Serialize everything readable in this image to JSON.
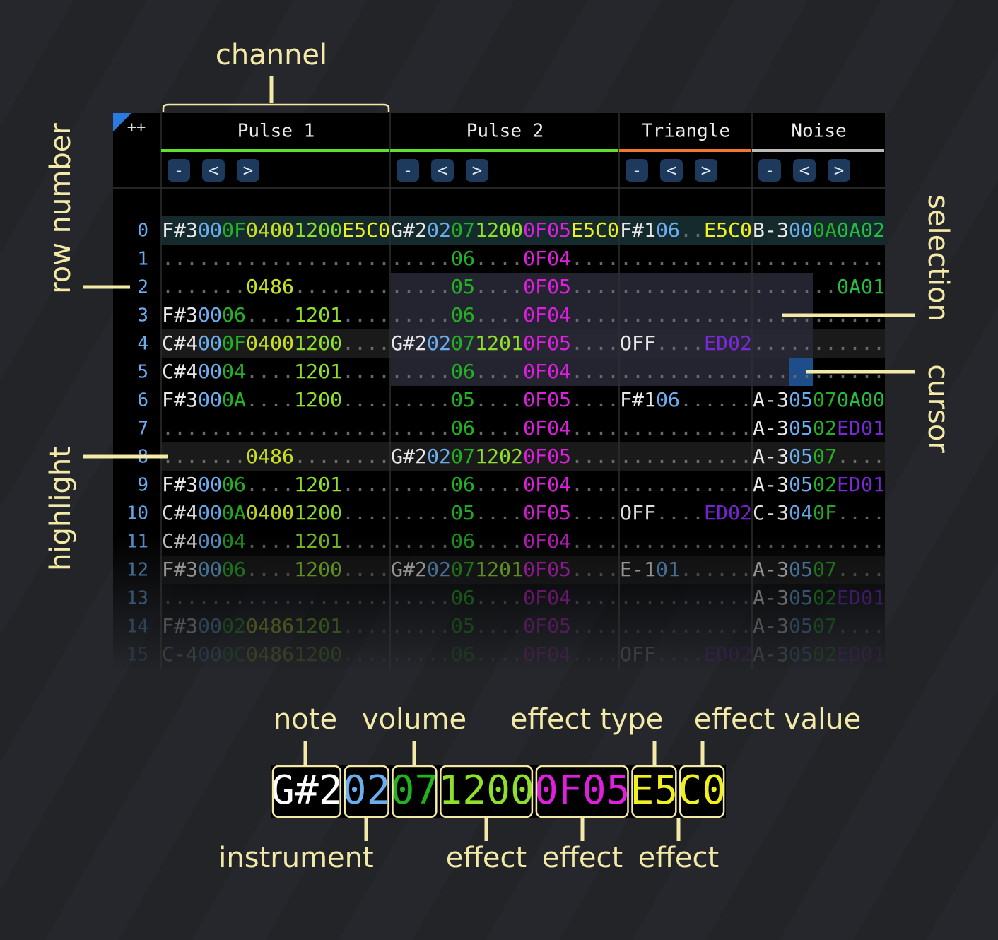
{
  "annotations": {
    "channel": "channel",
    "row_number": "row number",
    "highlight": "highlight",
    "selection": "selection",
    "cursor": "cursor"
  },
  "header": {
    "corner": "++",
    "channels": [
      {
        "name": "Pulse 1",
        "color": "#5fe030",
        "buttons": [
          "-",
          "<",
          ">"
        ]
      },
      {
        "name": "Pulse 2",
        "color": "#5fe030",
        "buttons": [
          "-",
          "<",
          ">"
        ]
      },
      {
        "name": "Triangle",
        "color": "#f07830",
        "buttons": [
          "-",
          "<",
          ">"
        ]
      },
      {
        "name": "Noise",
        "color": "#bbbbbb",
        "buttons": [
          "-",
          "<",
          ">"
        ]
      }
    ]
  },
  "pattern": {
    "colors": {
      "note": "#e8e8e8",
      "instrument": "#6aaef0",
      "volume": "#22b322",
      "dot": "#6a6a6a",
      "effects": {
        "04": "#c8e020",
        "12": "#8ee02a",
        "0F": "#e01ee0",
        "E5": "#f0f020",
        "ED": "#7a28d8",
        "0A": "#22c040"
      }
    },
    "rows": [
      {
        "number": 0,
        "cells": [
          [
            "F#3",
            "00",
            "0F",
            "0400",
            "1200",
            "E5C0"
          ],
          [
            "G#2",
            "02",
            "07",
            "1200",
            "0F05",
            "E5C0"
          ],
          [
            "F#1",
            "06",
            "..",
            "E5C0"
          ],
          [
            "B-3",
            "00",
            "0A",
            "0A02"
          ]
        ]
      },
      {
        "number": 1,
        "cells": [
          [
            "...",
            "..",
            "..",
            "....",
            "....",
            "...."
          ],
          [
            "...",
            "..",
            "06",
            "....",
            "0F04",
            "...."
          ],
          [
            "...",
            "..",
            "..",
            "...."
          ],
          [
            "...",
            "..",
            "..",
            "...."
          ]
        ]
      },
      {
        "number": 2,
        "cells": [
          [
            "...",
            "..",
            "..",
            "0486",
            "....",
            "...."
          ],
          [
            "...",
            "..",
            "05",
            "....",
            "0F05",
            "...."
          ],
          [
            "...",
            "..",
            "..",
            "...."
          ],
          [
            "...",
            "..",
            "..",
            "0A01"
          ]
        ]
      },
      {
        "number": 3,
        "cells": [
          [
            "F#3",
            "00",
            "06",
            "....",
            "1201",
            "...."
          ],
          [
            "...",
            "..",
            "06",
            "....",
            "0F04",
            "...."
          ],
          [
            "...",
            "..",
            "..",
            "...."
          ],
          [
            "...",
            "..",
            "..",
            "...."
          ]
        ]
      },
      {
        "number": 4,
        "cells": [
          [
            "C#4",
            "00",
            "0F",
            "0400",
            "1200",
            "...."
          ],
          [
            "G#2",
            "02",
            "07",
            "1201",
            "0F05",
            "...."
          ],
          [
            "OFF",
            "..",
            "..",
            "ED02"
          ],
          [
            "...",
            "..",
            "..",
            "...."
          ]
        ]
      },
      {
        "number": 5,
        "cells": [
          [
            "C#4",
            "00",
            "04",
            "....",
            "1201",
            "...."
          ],
          [
            "...",
            "..",
            "06",
            "....",
            "0F04",
            "...."
          ],
          [
            "...",
            "..",
            "..",
            "...."
          ],
          [
            "...",
            "..",
            "..",
            "...."
          ]
        ]
      },
      {
        "number": 6,
        "cells": [
          [
            "F#3",
            "00",
            "0A",
            "....",
            "1200",
            "...."
          ],
          [
            "...",
            "..",
            "05",
            "....",
            "0F05",
            "...."
          ],
          [
            "F#1",
            "06",
            "..",
            "...."
          ],
          [
            "A-3",
            "05",
            "07",
            "0A00"
          ]
        ]
      },
      {
        "number": 7,
        "cells": [
          [
            "...",
            "..",
            "..",
            "....",
            "....",
            "...."
          ],
          [
            "...",
            "..",
            "06",
            "....",
            "0F04",
            "...."
          ],
          [
            "...",
            "..",
            "..",
            "...."
          ],
          [
            "A-3",
            "05",
            "02",
            "ED01"
          ]
        ]
      },
      {
        "number": 8,
        "cells": [
          [
            "...",
            "..",
            "..",
            "0486",
            "....",
            "...."
          ],
          [
            "G#2",
            "02",
            "07",
            "1202",
            "0F05",
            "...."
          ],
          [
            "...",
            "..",
            "..",
            "...."
          ],
          [
            "A-3",
            "05",
            "07",
            "...."
          ]
        ]
      },
      {
        "number": 9,
        "cells": [
          [
            "F#3",
            "00",
            "06",
            "....",
            "1201",
            "...."
          ],
          [
            "...",
            "..",
            "06",
            "....",
            "0F04",
            "...."
          ],
          [
            "...",
            "..",
            "..",
            "...."
          ],
          [
            "A-3",
            "05",
            "02",
            "ED01"
          ]
        ]
      },
      {
        "number": 10,
        "cells": [
          [
            "C#4",
            "00",
            "0A",
            "0400",
            "1200",
            "...."
          ],
          [
            "...",
            "..",
            "05",
            "....",
            "0F05",
            "...."
          ],
          [
            "OFF",
            "..",
            "..",
            "ED02"
          ],
          [
            "C-3",
            "04",
            "0F",
            "...."
          ]
        ]
      },
      {
        "number": 11,
        "cells": [
          [
            "C#4",
            "00",
            "04",
            "....",
            "1201",
            "...."
          ],
          [
            "...",
            "..",
            "06",
            "....",
            "0F04",
            "...."
          ],
          [
            "...",
            "..",
            "..",
            "...."
          ],
          [
            "...",
            "..",
            "..",
            "...."
          ]
        ]
      },
      {
        "number": 12,
        "cells": [
          [
            "F#3",
            "00",
            "06",
            "....",
            "1200",
            "...."
          ],
          [
            "G#2",
            "02",
            "07",
            "1201",
            "0F05",
            "...."
          ],
          [
            "E-1",
            "01",
            "..",
            "...."
          ],
          [
            "A-3",
            "05",
            "07",
            "...."
          ]
        ]
      },
      {
        "number": 13,
        "cells": [
          [
            "...",
            "..",
            "..",
            "....",
            "....",
            "...."
          ],
          [
            "...",
            "..",
            "06",
            "....",
            "0F04",
            "...."
          ],
          [
            "...",
            "..",
            "..",
            "...."
          ],
          [
            "A-3",
            "05",
            "02",
            "ED01"
          ]
        ]
      },
      {
        "number": 14,
        "cells": [
          [
            "F#3",
            "00",
            "02",
            "0486",
            "1201",
            "...."
          ],
          [
            "...",
            "..",
            "05",
            "....",
            "0F05",
            "...."
          ],
          [
            "...",
            "..",
            "..",
            "...."
          ],
          [
            "A-3",
            "05",
            "07",
            "...."
          ]
        ]
      },
      {
        "number": 15,
        "cells": [
          [
            "C-4",
            "00",
            "0C",
            "0486",
            "1200",
            "...."
          ],
          [
            "...",
            "..",
            "06",
            "....",
            "0F04",
            "...."
          ],
          [
            "OFF",
            "..",
            "..",
            "ED02"
          ],
          [
            "A-3",
            "05",
            "02",
            "ED01"
          ]
        ]
      }
    ]
  },
  "legend": {
    "segments": [
      "G#2",
      "02",
      "07",
      "1200",
      "0F05",
      "E5",
      "C0"
    ],
    "colors": [
      "#ffffff",
      "#6aaef0",
      "#1fb31f",
      "#8ee02a",
      "#e01ee0",
      "#f0f020",
      "#f0f020"
    ],
    "top_labels": [
      "note",
      "volume",
      "effect type",
      "effect value"
    ],
    "bottom_labels": [
      "instrument",
      "effect",
      "effect",
      "effect"
    ]
  }
}
